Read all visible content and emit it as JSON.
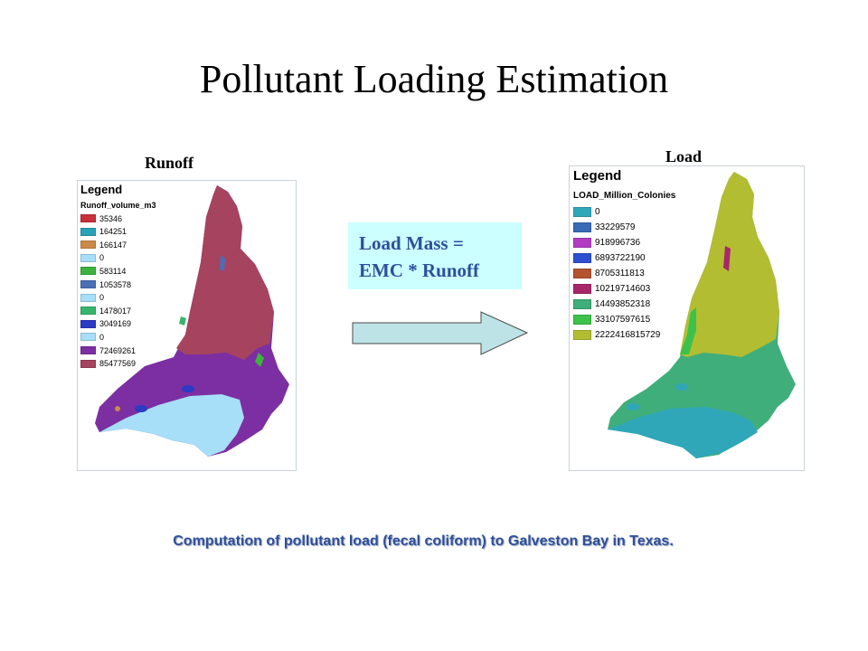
{
  "title": "Pollutant Loading Estimation",
  "runoff_panel": {
    "label": "Runoff",
    "legend_title": "Legend",
    "legend_field": "Runoff_volume_m3",
    "items": [
      {
        "label": "35346",
        "color": "#c8303a"
      },
      {
        "label": "164251",
        "color": "#27a3b8"
      },
      {
        "label": "166147",
        "color": "#c98a4a"
      },
      {
        "label": "0",
        "color": "#a6dff7"
      },
      {
        "label": "583114",
        "color": "#3db33d"
      },
      {
        "label": "1053578",
        "color": "#4a6fb5"
      },
      {
        "label": "0",
        "color": "#a6dff7"
      },
      {
        "label": "1478017",
        "color": "#38b56c"
      },
      {
        "label": "3049169",
        "color": "#2b3bc4"
      },
      {
        "label": "0",
        "color": "#a6dff7"
      },
      {
        "label": "72469261",
        "color": "#7c2fa2"
      },
      {
        "label": "85477569",
        "color": "#a6435f"
      }
    ]
  },
  "load_panel": {
    "label": "Load",
    "legend_title": "Legend",
    "legend_field": "LOAD_Million_Colonies",
    "items": [
      {
        "label": "0",
        "color": "#30a7b8"
      },
      {
        "label": "33229579",
        "color": "#3a6ab5"
      },
      {
        "label": "918996736",
        "color": "#b33bc4"
      },
      {
        "label": "6893722190",
        "color": "#2d4fd1"
      },
      {
        "label": "8705311813",
        "color": "#b5532f"
      },
      {
        "label": "10219714603",
        "color": "#a8276a"
      },
      {
        "label": "14493852318",
        "color": "#3fae7a"
      },
      {
        "label": "33107597615",
        "color": "#3cc24a"
      },
      {
        "label": "2222416815729",
        "color": "#b2bd32"
      }
    ]
  },
  "equation": {
    "line1": "Load Mass =",
    "line2": "EMC * Runoff"
  },
  "caption": "Computation of pollutant load (fecal coliform) to Galveston Bay in Texas."
}
